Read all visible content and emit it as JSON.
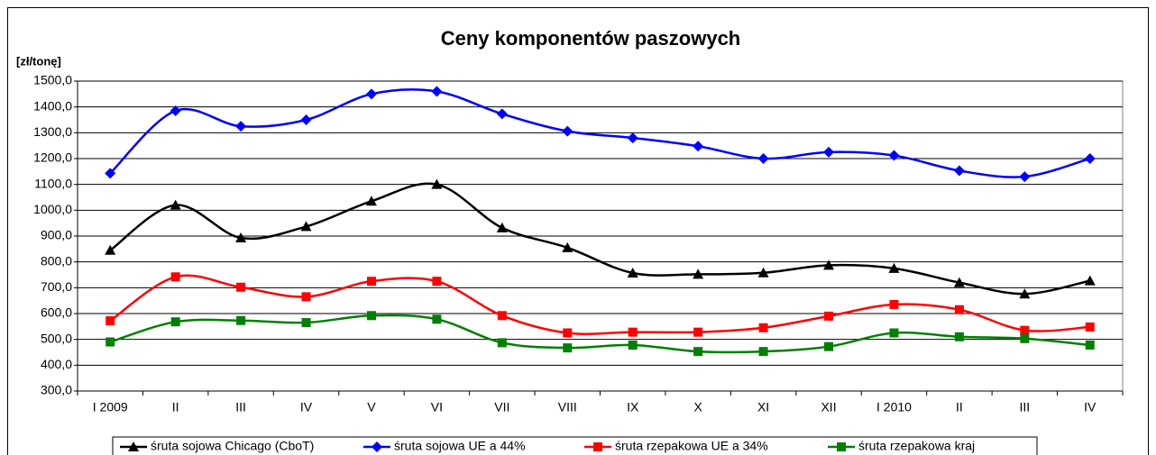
{
  "chart_data": {
    "type": "line",
    "title": "Ceny komponentów paszowych",
    "y_label": "[zł/tonę]",
    "categories": [
      "I 2009",
      "II",
      "III",
      "IV",
      "V",
      "VI",
      "VII",
      "VIII",
      "IX",
      "X",
      "XI",
      "XII",
      "I 2010",
      "II",
      "III",
      "IV"
    ],
    "series": [
      {
        "name": "śruta sojowa Chicago (CboT)",
        "color": "#000000",
        "marker": "triangle",
        "values": [
          845,
          1020,
          893,
          937,
          1035,
          1100,
          932,
          855,
          757,
          752,
          758,
          787,
          775,
          720,
          676,
          727
        ]
      },
      {
        "name": "śruta sojowa UE a 44%",
        "color": "#0000ff",
        "marker": "diamond",
        "values": [
          1143,
          1385,
          1325,
          1350,
          1450,
          1460,
          1373,
          1306,
          1280,
          1248,
          1200,
          1225,
          1212,
          1153,
          1130,
          1200
        ]
      },
      {
        "name": "śruta rzepakowa UE a 34%",
        "color": "#ff0000",
        "marker": "square",
        "values": [
          572,
          742,
          702,
          665,
          725,
          725,
          592,
          525,
          528,
          528,
          545,
          590,
          635,
          615,
          535,
          548
        ]
      },
      {
        "name": "śruta rzepakowa kraj",
        "color": "#008000",
        "marker": "square",
        "values": [
          490,
          568,
          573,
          565,
          592,
          578,
          487,
          467,
          478,
          453,
          453,
          472,
          525,
          510,
          503,
          478
        ]
      }
    ],
    "ylim": [
      300,
      1500
    ],
    "yticks": [
      {
        "value": 300,
        "label": "300,0"
      },
      {
        "value": 400,
        "label": "400,0"
      },
      {
        "value": 500,
        "label": "500,0"
      },
      {
        "value": 600,
        "label": "600,0"
      },
      {
        "value": 700,
        "label": "700,0"
      },
      {
        "value": 800,
        "label": "800,0"
      },
      {
        "value": 900,
        "label": "900,0"
      },
      {
        "value": 1000,
        "label": "1000,0"
      },
      {
        "value": 1100,
        "label": "1100,0"
      },
      {
        "value": 1200,
        "label": "1200,0"
      },
      {
        "value": 1300,
        "label": "1300,0"
      },
      {
        "value": 1400,
        "label": "1400,0"
      },
      {
        "value": 1500,
        "label": "1500,0"
      }
    ],
    "grid": true,
    "smooth": true,
    "legend": "bottom"
  }
}
